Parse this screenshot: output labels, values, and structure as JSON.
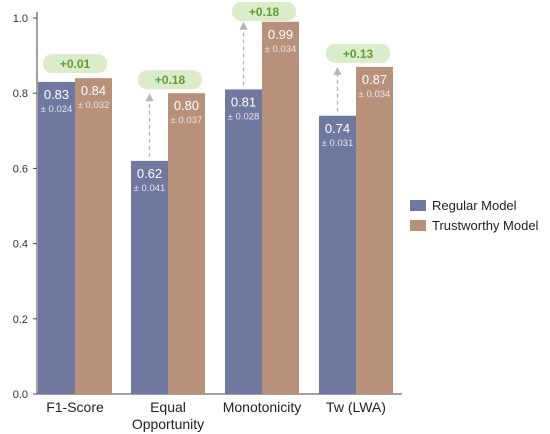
{
  "chart_data": {
    "type": "bar",
    "categories": [
      [
        "F1-Score"
      ],
      [
        "Equal",
        "Opportunity"
      ],
      [
        "Monotonicity"
      ],
      [
        "Tw (LWA)"
      ]
    ],
    "series": [
      {
        "name": "Regular Model",
        "color": "#7078a0",
        "values": [
          0.83,
          0.62,
          0.81,
          0.74
        ],
        "value_labels": [
          "0.83",
          "0.62",
          "0.81",
          "0.74"
        ],
        "error_labels": [
          "± 0.024",
          "± 0.041",
          "± 0.028",
          "± 0.031"
        ]
      },
      {
        "name": "Trustworthy Model",
        "color": "#b8917b",
        "values": [
          0.84,
          0.8,
          0.99,
          0.87
        ],
        "value_labels": [
          "0.84",
          "0.80",
          "0.99",
          "0.87"
        ],
        "error_labels": [
          "± 0.032",
          "± 0.037",
          "± 0.034",
          "± 0.034"
        ]
      }
    ],
    "improvements": [
      "+0.01",
      "+0.18",
      "+0.18",
      "+0.13"
    ],
    "improvement_box_color": "#dbeccb",
    "improvement_text_color": "#5f9e32",
    "yticks": [
      "0.0",
      "0.2",
      "0.4",
      "0.6",
      "0.8",
      "1.0"
    ],
    "ylim": [
      0,
      1.0
    ],
    "legend_position": "right",
    "grid": false
  }
}
